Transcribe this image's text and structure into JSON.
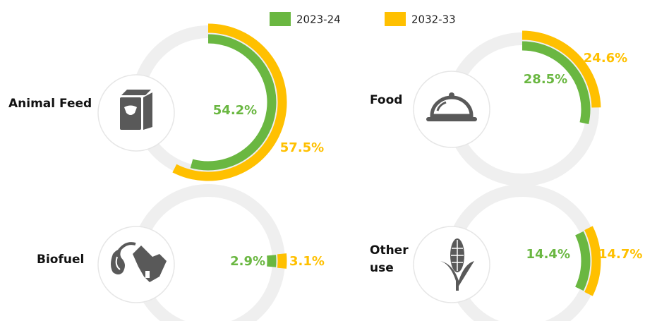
{
  "chart_data": {
    "type": "donut",
    "categories": [
      "Animal Feed",
      "Food",
      "Biofuel",
      "Other use"
    ],
    "series": [
      {
        "name": "2023-24",
        "color": "#6ab741",
        "values": [
          54.2,
          28.5,
          2.9,
          14.4
        ],
        "value_labels": [
          "54.2%",
          "28.5%",
          "2.9%",
          "14.4%"
        ]
      },
      {
        "name": "2032-33",
        "color": "#ffc000",
        "values": [
          57.5,
          24.6,
          3.1,
          14.7
        ],
        "value_labels": [
          "57.5%",
          "24.6%",
          "3.1%",
          "14.7%"
        ]
      }
    ],
    "legend": "top"
  }
}
